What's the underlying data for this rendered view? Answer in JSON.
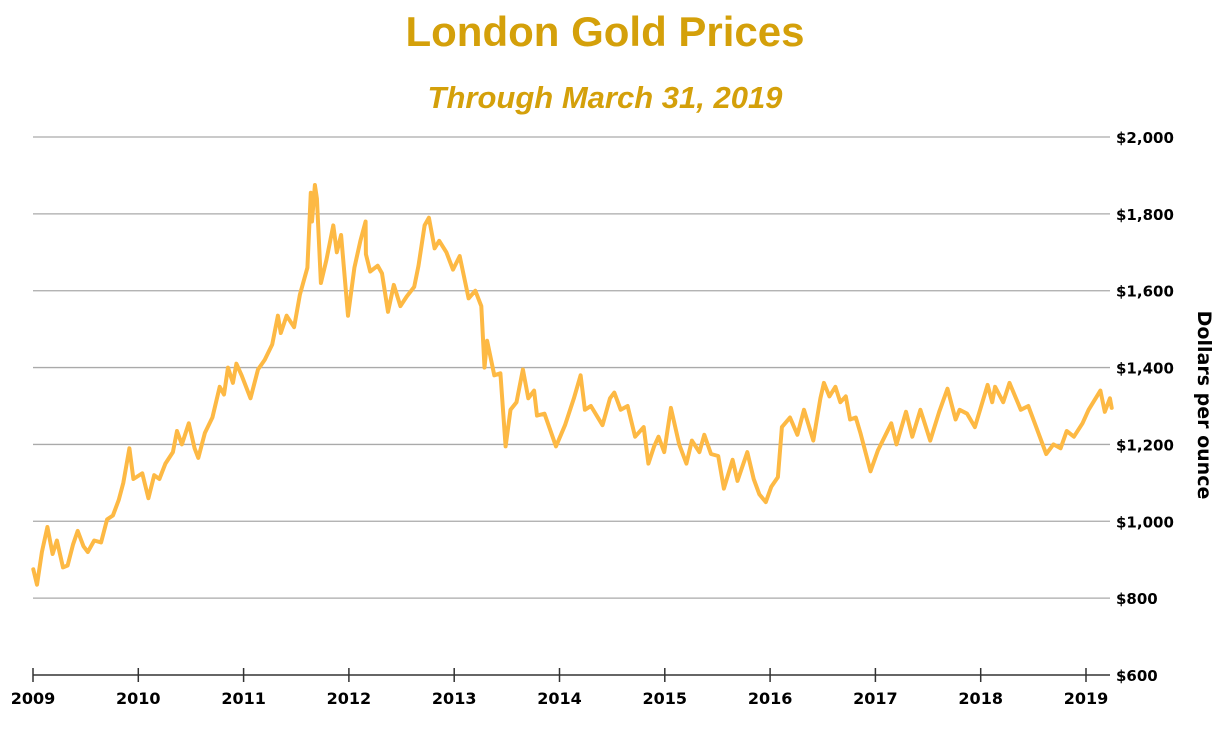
{
  "chart_data": {
    "type": "line",
    "title": "London Gold Prices",
    "subtitle": "Through March 31, 2019",
    "xlabel": "",
    "ylabel": "Dollars per ounce",
    "xlim": [
      "2009-01-01",
      "2019-03-31"
    ],
    "ylim": [
      600,
      2000
    ],
    "x_ticks": [
      "2009",
      "2010",
      "2011",
      "2012",
      "2013",
      "2014",
      "2015",
      "2016",
      "2017",
      "2018",
      "2019"
    ],
    "y_ticks": [
      {
        "value": 2000,
        "label": "$2,000"
      },
      {
        "value": 1800,
        "label": "$1,800"
      },
      {
        "value": 1600,
        "label": "$1,600"
      },
      {
        "value": 1400,
        "label": "$1,400"
      },
      {
        "value": 1200,
        "label": "$1,200"
      },
      {
        "value": 1000,
        "label": "$1,000"
      },
      {
        "value": 800,
        "label": "$800"
      },
      {
        "value": 600,
        "label": "$600"
      }
    ],
    "grid": "horizontal",
    "y_axis_side": "right",
    "line_color": "#FDB944",
    "title_color": "#D4A00A",
    "series": [
      {
        "points": [
          [
            "2009-01-02",
            875
          ],
          [
            "2009-01-15",
            835
          ],
          [
            "2009-02-01",
            920
          ],
          [
            "2009-02-20",
            985
          ],
          [
            "2009-03-10",
            915
          ],
          [
            "2009-03-25",
            950
          ],
          [
            "2009-04-15",
            880
          ],
          [
            "2009-05-01",
            885
          ],
          [
            "2009-05-20",
            940
          ],
          [
            "2009-06-05",
            975
          ],
          [
            "2009-06-25",
            935
          ],
          [
            "2009-07-10",
            920
          ],
          [
            "2009-08-01",
            950
          ],
          [
            "2009-08-25",
            945
          ],
          [
            "2009-09-15",
            1005
          ],
          [
            "2009-10-05",
            1015
          ],
          [
            "2009-10-25",
            1055
          ],
          [
            "2009-11-10",
            1100
          ],
          [
            "2009-12-01",
            1190
          ],
          [
            "2009-12-15",
            1110
          ],
          [
            "2010-01-15",
            1125
          ],
          [
            "2010-02-05",
            1060
          ],
          [
            "2010-02-25",
            1120
          ],
          [
            "2010-03-15",
            1110
          ],
          [
            "2010-04-05",
            1150
          ],
          [
            "2010-05-01",
            1180
          ],
          [
            "2010-05-15",
            1235
          ],
          [
            "2010-06-01",
            1200
          ],
          [
            "2010-06-25",
            1255
          ],
          [
            "2010-07-15",
            1190
          ],
          [
            "2010-07-28",
            1165
          ],
          [
            "2010-08-20",
            1230
          ],
          [
            "2010-09-15",
            1270
          ],
          [
            "2010-10-10",
            1350
          ],
          [
            "2010-10-25",
            1330
          ],
          [
            "2010-11-08",
            1400
          ],
          [
            "2010-11-25",
            1360
          ],
          [
            "2010-12-07",
            1410
          ],
          [
            "2010-12-25",
            1380
          ],
          [
            "2011-01-25",
            1320
          ],
          [
            "2011-02-20",
            1395
          ],
          [
            "2011-03-15",
            1420
          ],
          [
            "2011-04-10",
            1460
          ],
          [
            "2011-04-30",
            1535
          ],
          [
            "2011-05-10",
            1490
          ],
          [
            "2011-05-30",
            1535
          ],
          [
            "2011-06-25",
            1505
          ],
          [
            "2011-07-15",
            1590
          ],
          [
            "2011-08-10",
            1660
          ],
          [
            "2011-08-22",
            1855
          ],
          [
            "2011-08-26",
            1780
          ],
          [
            "2011-09-05",
            1875
          ],
          [
            "2011-09-12",
            1840
          ],
          [
            "2011-09-26",
            1620
          ],
          [
            "2011-10-15",
            1680
          ],
          [
            "2011-11-08",
            1770
          ],
          [
            "2011-11-20",
            1700
          ],
          [
            "2011-12-05",
            1745
          ],
          [
            "2011-12-29",
            1535
          ],
          [
            "2012-01-20",
            1660
          ],
          [
            "2012-02-10",
            1730
          ],
          [
            "2012-02-28",
            1780
          ],
          [
            "2012-02-29",
            1695
          ],
          [
            "2012-03-15",
            1650
          ],
          [
            "2012-04-10",
            1665
          ],
          [
            "2012-04-25",
            1645
          ],
          [
            "2012-05-16",
            1545
          ],
          [
            "2012-06-05",
            1615
          ],
          [
            "2012-06-28",
            1560
          ],
          [
            "2012-07-20",
            1585
          ],
          [
            "2012-08-15",
            1610
          ],
          [
            "2012-08-30",
            1665
          ],
          [
            "2012-09-20",
            1770
          ],
          [
            "2012-10-05",
            1790
          ],
          [
            "2012-10-25",
            1710
          ],
          [
            "2012-11-10",
            1730
          ],
          [
            "2012-12-05",
            1700
          ],
          [
            "2012-12-28",
            1655
          ],
          [
            "2013-01-20",
            1690
          ],
          [
            "2013-02-20",
            1580
          ],
          [
            "2013-03-15",
            1600
          ],
          [
            "2013-04-05",
            1560
          ],
          [
            "2013-04-16",
            1400
          ],
          [
            "2013-04-25",
            1470
          ],
          [
            "2013-05-20",
            1380
          ],
          [
            "2013-06-10",
            1385
          ],
          [
            "2013-06-28",
            1195
          ],
          [
            "2013-07-15",
            1290
          ],
          [
            "2013-08-05",
            1310
          ],
          [
            "2013-08-27",
            1395
          ],
          [
            "2013-09-15",
            1320
          ],
          [
            "2013-10-05",
            1340
          ],
          [
            "2013-10-15",
            1275
          ],
          [
            "2013-11-10",
            1280
          ],
          [
            "2013-12-20",
            1195
          ],
          [
            "2014-01-20",
            1250
          ],
          [
            "2014-02-20",
            1320
          ],
          [
            "2014-03-15",
            1380
          ],
          [
            "2014-03-30",
            1290
          ],
          [
            "2014-04-20",
            1300
          ],
          [
            "2014-05-30",
            1250
          ],
          [
            "2014-06-25",
            1320
          ],
          [
            "2014-07-10",
            1335
          ],
          [
            "2014-08-01",
            1290
          ],
          [
            "2014-08-25",
            1300
          ],
          [
            "2014-09-20",
            1220
          ],
          [
            "2014-10-20",
            1245
          ],
          [
            "2014-11-05",
            1150
          ],
          [
            "2014-11-25",
            1195
          ],
          [
            "2014-12-10",
            1220
          ],
          [
            "2014-12-30",
            1180
          ],
          [
            "2015-01-22",
            1295
          ],
          [
            "2015-02-20",
            1200
          ],
          [
            "2015-03-17",
            1150
          ],
          [
            "2015-04-05",
            1210
          ],
          [
            "2015-05-01",
            1180
          ],
          [
            "2015-05-18",
            1225
          ],
          [
            "2015-06-10",
            1175
          ],
          [
            "2015-07-05",
            1170
          ],
          [
            "2015-07-25",
            1085
          ],
          [
            "2015-08-24",
            1160
          ],
          [
            "2015-09-10",
            1105
          ],
          [
            "2015-10-14",
            1180
          ],
          [
            "2015-11-05",
            1110
          ],
          [
            "2015-11-25",
            1070
          ],
          [
            "2015-12-17",
            1050
          ],
          [
            "2016-01-05",
            1090
          ],
          [
            "2016-01-28",
            1115
          ],
          [
            "2016-02-11",
            1245
          ],
          [
            "2016-03-10",
            1270
          ],
          [
            "2016-04-05",
            1225
          ],
          [
            "2016-04-28",
            1290
          ],
          [
            "2016-05-30",
            1210
          ],
          [
            "2016-06-24",
            1320
          ],
          [
            "2016-07-06",
            1360
          ],
          [
            "2016-07-25",
            1325
          ],
          [
            "2016-08-15",
            1350
          ],
          [
            "2016-09-01",
            1310
          ],
          [
            "2016-09-20",
            1325
          ],
          [
            "2016-10-05",
            1265
          ],
          [
            "2016-10-25",
            1270
          ],
          [
            "2016-11-10",
            1230
          ],
          [
            "2016-12-15",
            1130
          ],
          [
            "2017-01-10",
            1185
          ],
          [
            "2017-02-25",
            1255
          ],
          [
            "2017-03-15",
            1200
          ],
          [
            "2017-04-17",
            1285
          ],
          [
            "2017-05-09",
            1220
          ],
          [
            "2017-06-06",
            1290
          ],
          [
            "2017-07-10",
            1210
          ],
          [
            "2017-08-10",
            1285
          ],
          [
            "2017-09-08",
            1345
          ],
          [
            "2017-10-06",
            1265
          ],
          [
            "2017-10-20",
            1290
          ],
          [
            "2017-11-15",
            1280
          ],
          [
            "2017-12-12",
            1245
          ],
          [
            "2018-01-25",
            1355
          ],
          [
            "2018-02-10",
            1310
          ],
          [
            "2018-02-20",
            1350
          ],
          [
            "2018-03-20",
            1310
          ],
          [
            "2018-04-11",
            1360
          ],
          [
            "2018-05-20",
            1290
          ],
          [
            "2018-06-15",
            1300
          ],
          [
            "2018-07-10",
            1250
          ],
          [
            "2018-08-16",
            1175
          ],
          [
            "2018-09-10",
            1200
          ],
          [
            "2018-10-05",
            1190
          ],
          [
            "2018-10-26",
            1235
          ],
          [
            "2018-11-20",
            1220
          ],
          [
            "2018-12-20",
            1255
          ],
          [
            "2019-01-10",
            1290
          ],
          [
            "2019-02-20",
            1340
          ],
          [
            "2019-03-07",
            1285
          ],
          [
            "2019-03-25",
            1320
          ],
          [
            "2019-03-31",
            1295
          ]
        ]
      }
    ]
  }
}
